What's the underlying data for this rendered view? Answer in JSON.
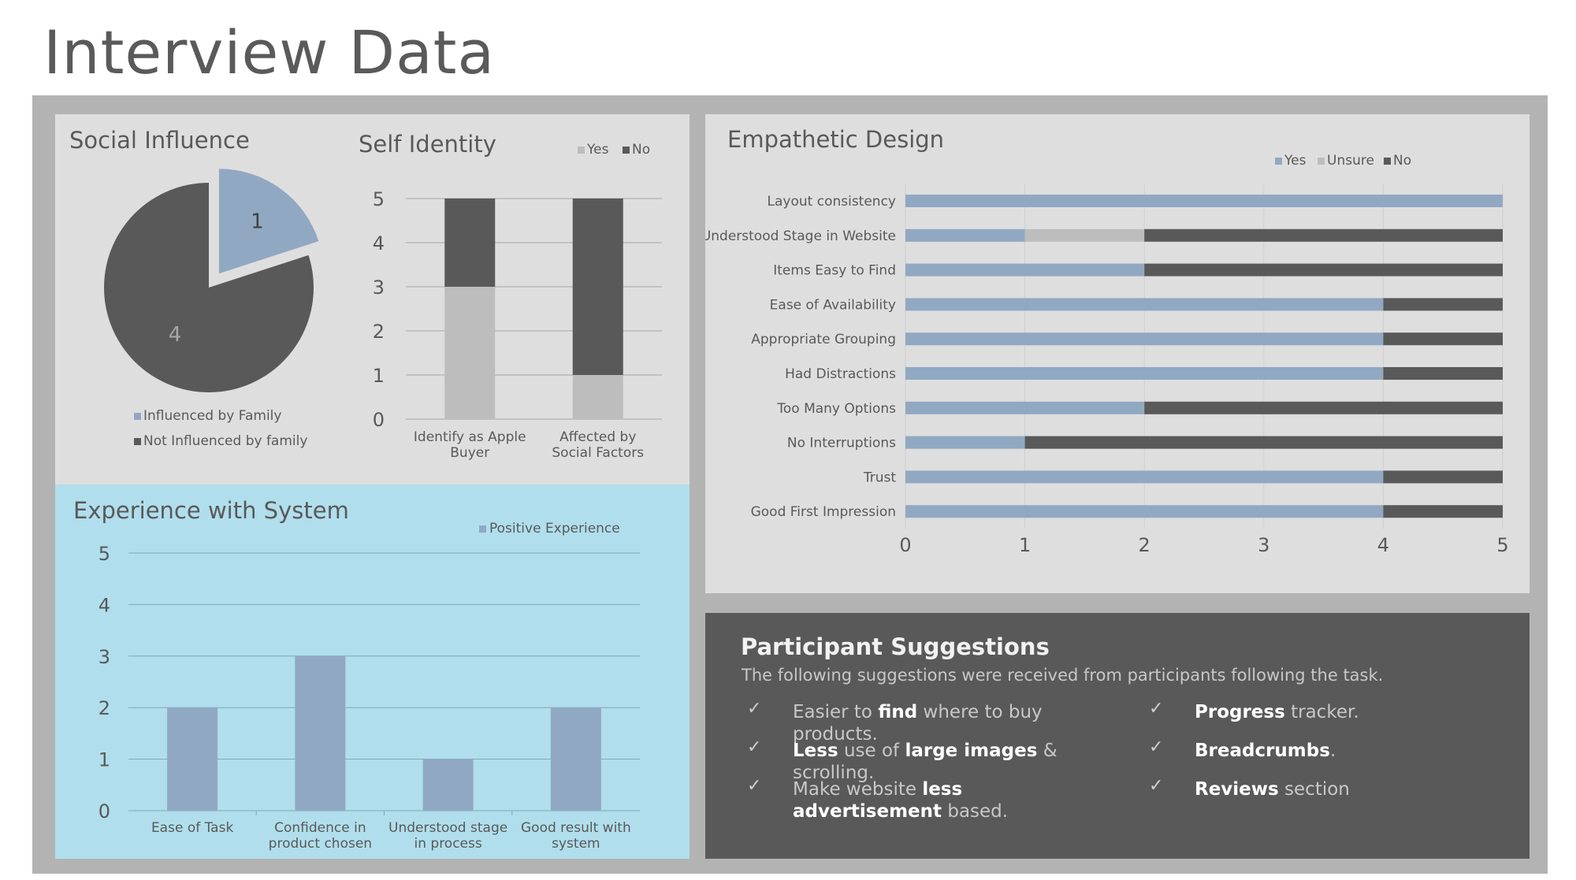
{
  "page": {
    "title": "Interview Data"
  },
  "social_influence": {
    "chart_data": {
      "type": "pie",
      "title": "Social Influence",
      "labels": [
        "Influenced by Family",
        "Not Influenced by family"
      ],
      "values": [
        1,
        4
      ],
      "colors": [
        "#91a8c3",
        "#595959"
      ],
      "legend": "bottom"
    }
  },
  "self_identity": {
    "chart_data": {
      "type": "bar",
      "stacked": true,
      "title": "Self Identity",
      "categories": [
        "Identify as Apple Buyer",
        "Affected by Social Factors"
      ],
      "series": [
        {
          "name": "Yes",
          "values": [
            3,
            1
          ],
          "color": "#bdbdbd"
        },
        {
          "name": "No",
          "values": [
            2,
            4
          ],
          "color": "#595959"
        }
      ],
      "ylim": [
        0,
        5
      ],
      "yticks": [
        "0",
        "1",
        "2",
        "3",
        "4",
        "5"
      ],
      "grid": true,
      "legend": "top-right"
    }
  },
  "experience": {
    "chart_data": {
      "type": "bar",
      "title": "Experience with System",
      "categories": [
        "Ease of Task",
        "Confidence in product chosen",
        "Understood stage in process",
        "Good result with system"
      ],
      "series": [
        {
          "name": "Positive Experience",
          "values": [
            2,
            3,
            1,
            2
          ],
          "color": "#91a8c3"
        }
      ],
      "ylim": [
        0,
        5
      ],
      "yticks": [
        "0",
        "1",
        "2",
        "3",
        "4",
        "5"
      ],
      "grid": true,
      "legend": "top-right"
    }
  },
  "empathetic": {
    "chart_data": {
      "type": "bar",
      "orientation": "horizontal",
      "stacked": true,
      "title": "Empathetic Design",
      "categories": [
        "Layout consistency",
        "Understood Stage in Website",
        "Items Easy to Find",
        "Ease of Availability",
        "Appropriate Grouping",
        "Had Distractions",
        "Too Many Options",
        "No Interruptions",
        "Trust",
        "Good First Impression"
      ],
      "series": [
        {
          "name": "Yes",
          "values": [
            5,
            1,
            2,
            4,
            4,
            4,
            2,
            1,
            4,
            4
          ],
          "color": "#91a8c3"
        },
        {
          "name": "Unsure",
          "values": [
            0,
            1,
            0,
            0,
            0,
            0,
            0,
            0,
            0,
            0
          ],
          "color": "#bdbdbd"
        },
        {
          "name": "No",
          "values": [
            0,
            3,
            3,
            1,
            1,
            1,
            3,
            4,
            1,
            1
          ],
          "color": "#595959"
        }
      ],
      "xlim": [
        0,
        5
      ],
      "xticks": [
        "0",
        "1",
        "2",
        "3",
        "4",
        "5"
      ],
      "grid": true,
      "legend": "top-right"
    }
  },
  "suggestions": {
    "title": "Participant Suggestions",
    "subtitle": "The following suggestions were received from participants following the task.",
    "check_glyph": "✓",
    "items": [
      {
        "parts": [
          {
            "text": "Easier to ",
            "bold": false
          },
          {
            "text": "find",
            "bold": true
          },
          {
            "text": " where to buy products.",
            "bold": false
          }
        ]
      },
      {
        "parts": [
          {
            "text": "Less",
            "bold": true
          },
          {
            "text": " use of ",
            "bold": false
          },
          {
            "text": "large images",
            "bold": true
          },
          {
            "text": " & scrolling.",
            "bold": false
          }
        ]
      },
      {
        "parts": [
          {
            "text": "Make website ",
            "bold": false
          },
          {
            "text": "less advertisement",
            "bold": true
          },
          {
            "text": " based.",
            "bold": false
          }
        ]
      },
      {
        "parts": [
          {
            "text": "Progress",
            "bold": true
          },
          {
            "text": " tracker.",
            "bold": false
          }
        ]
      },
      {
        "parts": [
          {
            "text": "Breadcrumbs",
            "bold": true
          },
          {
            "text": ".",
            "bold": false
          }
        ]
      },
      {
        "parts": [
          {
            "text": "Reviews",
            "bold": true
          },
          {
            "text": " section",
            "bold": false
          }
        ]
      }
    ]
  }
}
